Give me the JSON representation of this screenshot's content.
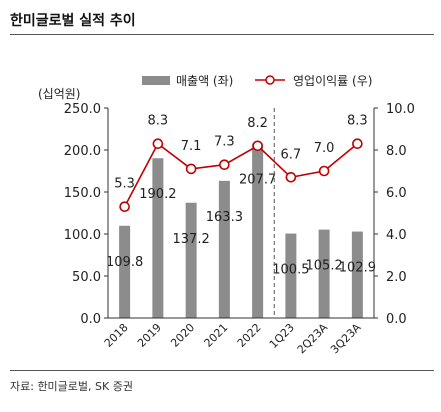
{
  "title": "한미글로벌 실적 추이",
  "source": "자료: 한미글로벌, SK 증권",
  "chart_data": {
    "type": "bar+line",
    "categories": [
      "2018",
      "2019",
      "2020",
      "2021",
      "2022",
      "1Q23",
      "2Q23A",
      "3Q23A"
    ],
    "left_axis": {
      "unit_label": "(십억원)",
      "min": 0,
      "max": 250,
      "ticks": [
        "0.0",
        "50.0",
        "100.0",
        "150.0",
        "200.0",
        "250.0"
      ]
    },
    "right_axis": {
      "min": 0,
      "max": 10,
      "ticks": [
        "0.0",
        "2.0",
        "4.0",
        "6.0",
        "8.0",
        "10.0"
      ]
    },
    "series": [
      {
        "name": "매출액 (좌)",
        "type": "bar",
        "axis": "left",
        "values": [
          109.8,
          190.2,
          137.2,
          163.3,
          207.7,
          100.5,
          105.2,
          102.9
        ],
        "labels": [
          "109.8",
          "190.2",
          "137.2",
          "163.3",
          "207.7",
          "100.5",
          "105.2",
          "102.9"
        ],
        "color": "#8c8c8c"
      },
      {
        "name": "영업이익률 (우)",
        "type": "line",
        "axis": "right",
        "values": [
          5.3,
          8.3,
          7.1,
          7.3,
          8.2,
          6.7,
          7.0,
          8.3
        ],
        "labels": [
          "5.3",
          "8.3",
          "7.1",
          "7.3",
          "8.2",
          "6.7",
          "7.0",
          "8.3"
        ],
        "color": "#c00000"
      }
    ],
    "legend_position": "top",
    "annual_quarterly_divider_after": "2022",
    "grid": false
  }
}
